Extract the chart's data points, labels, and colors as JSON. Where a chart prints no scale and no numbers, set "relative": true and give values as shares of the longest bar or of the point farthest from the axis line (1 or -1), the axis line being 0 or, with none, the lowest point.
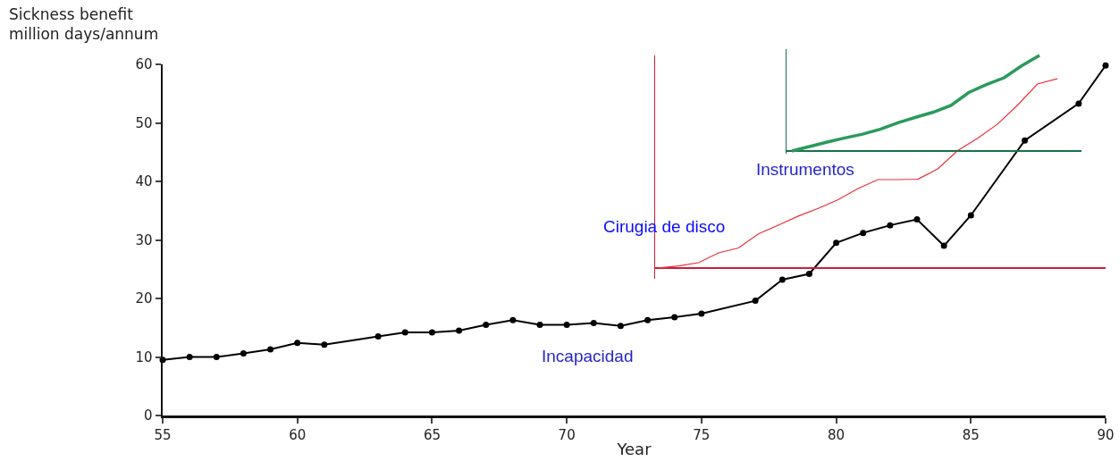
{
  "chart_data": [
    {
      "type": "line",
      "ylabel": "Sickness benefit\nmillion days/annum",
      "xlabel": "Year",
      "marker": "circle",
      "line_style": "solid",
      "grid": false,
      "legend": false,
      "x": [
        55,
        56,
        57,
        58,
        59,
        60,
        61,
        63,
        64,
        65,
        66,
        67,
        68,
        69,
        70,
        71,
        72,
        73,
        74,
        75,
        77,
        78,
        79,
        80,
        81,
        82,
        83,
        84,
        85,
        87,
        89,
        90
      ],
      "series": [
        {
          "name": "Incapacidad",
          "color": "#000000",
          "values": [
            9.5,
            10,
            10,
            10.6,
            11.3,
            12.4,
            12.1,
            13.5,
            14.2,
            14.2,
            14.5,
            15.5,
            16.3,
            15.5,
            15.5,
            15.8,
            15.3,
            16.3,
            16.8,
            17.4,
            19.6,
            23.2,
            24.2,
            29.5,
            31.2,
            32.5,
            33.5,
            29,
            34.2,
            47,
            53.3,
            59.8
          ]
        }
      ],
      "xlim": [
        55,
        90
      ],
      "xticks": [
        55,
        60,
        65,
        70,
        75,
        80,
        85,
        90
      ],
      "ylim": [
        0,
        60
      ],
      "yticks": [
        0,
        10,
        20,
        30,
        40,
        50,
        60
      ]
    },
    {
      "type": "line",
      "relative": true,
      "marker": "none",
      "line_style": "solid",
      "categories": [
        null,
        null,
        null,
        null,
        null,
        null,
        null,
        null,
        null,
        null,
        null,
        null,
        null,
        null,
        null,
        null,
        null,
        null,
        null,
        null,
        null
      ],
      "series": [
        {
          "name": "Cirugia de disco",
          "color": "#e8303a",
          "values": [
            0,
            0.011,
            0.028,
            0.08,
            0.106,
            0.18,
            0.226,
            0.274,
            0.315,
            0.361,
            0.42,
            0.467,
            0.467,
            0.469,
            0.524,
            0.62,
            0.685,
            0.76,
            0.86,
            0.972,
            1
          ]
        }
      ]
    },
    {
      "type": "line",
      "relative": true,
      "marker": "none",
      "line_style": "solid",
      "categories": [
        null,
        null,
        null,
        null,
        null,
        null,
        null,
        null,
        null,
        null,
        null,
        null,
        null,
        null,
        null
      ],
      "series": [
        {
          "name": "Instrumentos",
          "color": "#2a9a5a",
          "values": [
            0,
            0.047,
            0.094,
            0.137,
            0.176,
            0.227,
            0.295,
            0.353,
            0.406,
            0.478,
            0.612,
            0.694,
            0.766,
            0.892,
            1
          ]
        }
      ]
    }
  ]
}
